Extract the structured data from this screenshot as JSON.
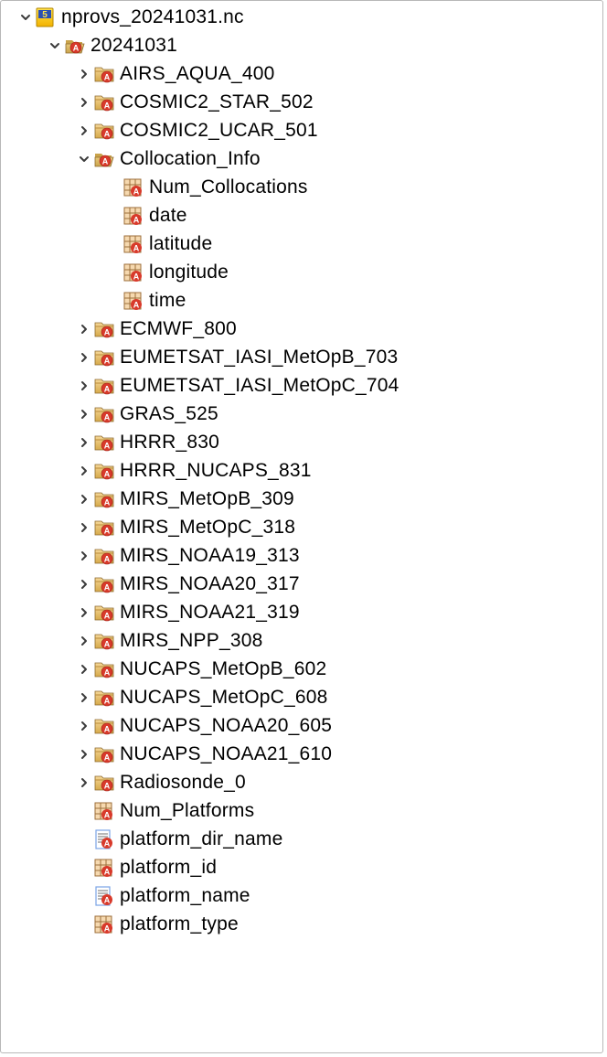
{
  "colors": {
    "border": "#b8b8b8",
    "text": "#000000",
    "toggle": "#3b3b3b",
    "file_yellow_top": "#ffe34d",
    "file_yellow_bot": "#f2b200",
    "file_number_bg": "#2b4fb3",
    "folder_open_top": "#e8c97a",
    "folder_open_bot": "#c9a34b",
    "folder_closed_top": "#f5d797",
    "folder_closed_bot": "#d6a94a",
    "badge_red": "#d83a2b",
    "badge_red_shadow": "#a52015",
    "grid_fill": "#f6d9b0",
    "grid_line": "#9c6e3a",
    "doc_fill": "#ffffff",
    "doc_line": "#7aa4e6",
    "doc_text": "#6f6f6f"
  },
  "tree": [
    {
      "depth": 0,
      "toggle": "open",
      "icon": "file-nc",
      "label": "nprovs_20241031.nc",
      "interact": true
    },
    {
      "depth": 1,
      "toggle": "open",
      "icon": "folder-open",
      "label": "20241031",
      "interact": true
    },
    {
      "depth": 2,
      "toggle": "closed",
      "icon": "folder-closed",
      "label": "AIRS_AQUA_400",
      "interact": true
    },
    {
      "depth": 2,
      "toggle": "closed",
      "icon": "folder-closed",
      "label": "COSMIC2_STAR_502",
      "interact": true
    },
    {
      "depth": 2,
      "toggle": "closed",
      "icon": "folder-closed",
      "label": "COSMIC2_UCAR_501",
      "interact": true
    },
    {
      "depth": 2,
      "toggle": "open",
      "icon": "folder-open",
      "label": "Collocation_Info",
      "interact": true
    },
    {
      "depth": 3,
      "toggle": "none",
      "icon": "grid-var",
      "label": "Num_Collocations",
      "interact": true
    },
    {
      "depth": 3,
      "toggle": "none",
      "icon": "grid-var",
      "label": "date",
      "interact": true
    },
    {
      "depth": 3,
      "toggle": "none",
      "icon": "grid-var",
      "label": "latitude",
      "interact": true
    },
    {
      "depth": 3,
      "toggle": "none",
      "icon": "grid-var",
      "label": "longitude",
      "interact": true
    },
    {
      "depth": 3,
      "toggle": "none",
      "icon": "grid-var",
      "label": "time",
      "interact": true
    },
    {
      "depth": 2,
      "toggle": "closed",
      "icon": "folder-closed",
      "label": "ECMWF_800",
      "interact": true
    },
    {
      "depth": 2,
      "toggle": "closed",
      "icon": "folder-closed",
      "label": "EUMETSAT_IASI_MetOpB_703",
      "interact": true
    },
    {
      "depth": 2,
      "toggle": "closed",
      "icon": "folder-closed",
      "label": "EUMETSAT_IASI_MetOpC_704",
      "interact": true
    },
    {
      "depth": 2,
      "toggle": "closed",
      "icon": "folder-closed",
      "label": "GRAS_525",
      "interact": true
    },
    {
      "depth": 2,
      "toggle": "closed",
      "icon": "folder-closed",
      "label": "HRRR_830",
      "interact": true
    },
    {
      "depth": 2,
      "toggle": "closed",
      "icon": "folder-closed",
      "label": "HRRR_NUCAPS_831",
      "interact": true
    },
    {
      "depth": 2,
      "toggle": "closed",
      "icon": "folder-closed",
      "label": "MIRS_MetOpB_309",
      "interact": true
    },
    {
      "depth": 2,
      "toggle": "closed",
      "icon": "folder-closed",
      "label": "MIRS_MetOpC_318",
      "interact": true
    },
    {
      "depth": 2,
      "toggle": "closed",
      "icon": "folder-closed",
      "label": "MIRS_NOAA19_313",
      "interact": true
    },
    {
      "depth": 2,
      "toggle": "closed",
      "icon": "folder-closed",
      "label": "MIRS_NOAA20_317",
      "interact": true
    },
    {
      "depth": 2,
      "toggle": "closed",
      "icon": "folder-closed",
      "label": "MIRS_NOAA21_319",
      "interact": true
    },
    {
      "depth": 2,
      "toggle": "closed",
      "icon": "folder-closed",
      "label": "MIRS_NPP_308",
      "interact": true
    },
    {
      "depth": 2,
      "toggle": "closed",
      "icon": "folder-closed",
      "label": "NUCAPS_MetOpB_602",
      "interact": true
    },
    {
      "depth": 2,
      "toggle": "closed",
      "icon": "folder-closed",
      "label": "NUCAPS_MetOpC_608",
      "interact": true
    },
    {
      "depth": 2,
      "toggle": "closed",
      "icon": "folder-closed",
      "label": "NUCAPS_NOAA20_605",
      "interact": true
    },
    {
      "depth": 2,
      "toggle": "closed",
      "icon": "folder-closed",
      "label": "NUCAPS_NOAA21_610",
      "interact": true
    },
    {
      "depth": 2,
      "toggle": "closed",
      "icon": "folder-closed",
      "label": "Radiosonde_0",
      "interact": true
    },
    {
      "depth": 2,
      "toggle": "none",
      "icon": "grid-var",
      "label": "Num_Platforms",
      "interact": true,
      "depthOverrideNoToggle": true
    },
    {
      "depth": 2,
      "toggle": "none",
      "icon": "doc-var",
      "label": "platform_dir_name",
      "interact": true,
      "depthOverrideNoToggle": true
    },
    {
      "depth": 2,
      "toggle": "none",
      "icon": "grid-var",
      "label": "platform_id",
      "interact": true,
      "depthOverrideNoToggle": true
    },
    {
      "depth": 2,
      "toggle": "none",
      "icon": "doc-var",
      "label": "platform_name",
      "interact": true,
      "depthOverrideNoToggle": true
    },
    {
      "depth": 2,
      "toggle": "none",
      "icon": "grid-var",
      "label": "platform_type",
      "interact": true,
      "depthOverrideNoToggle": true
    }
  ]
}
